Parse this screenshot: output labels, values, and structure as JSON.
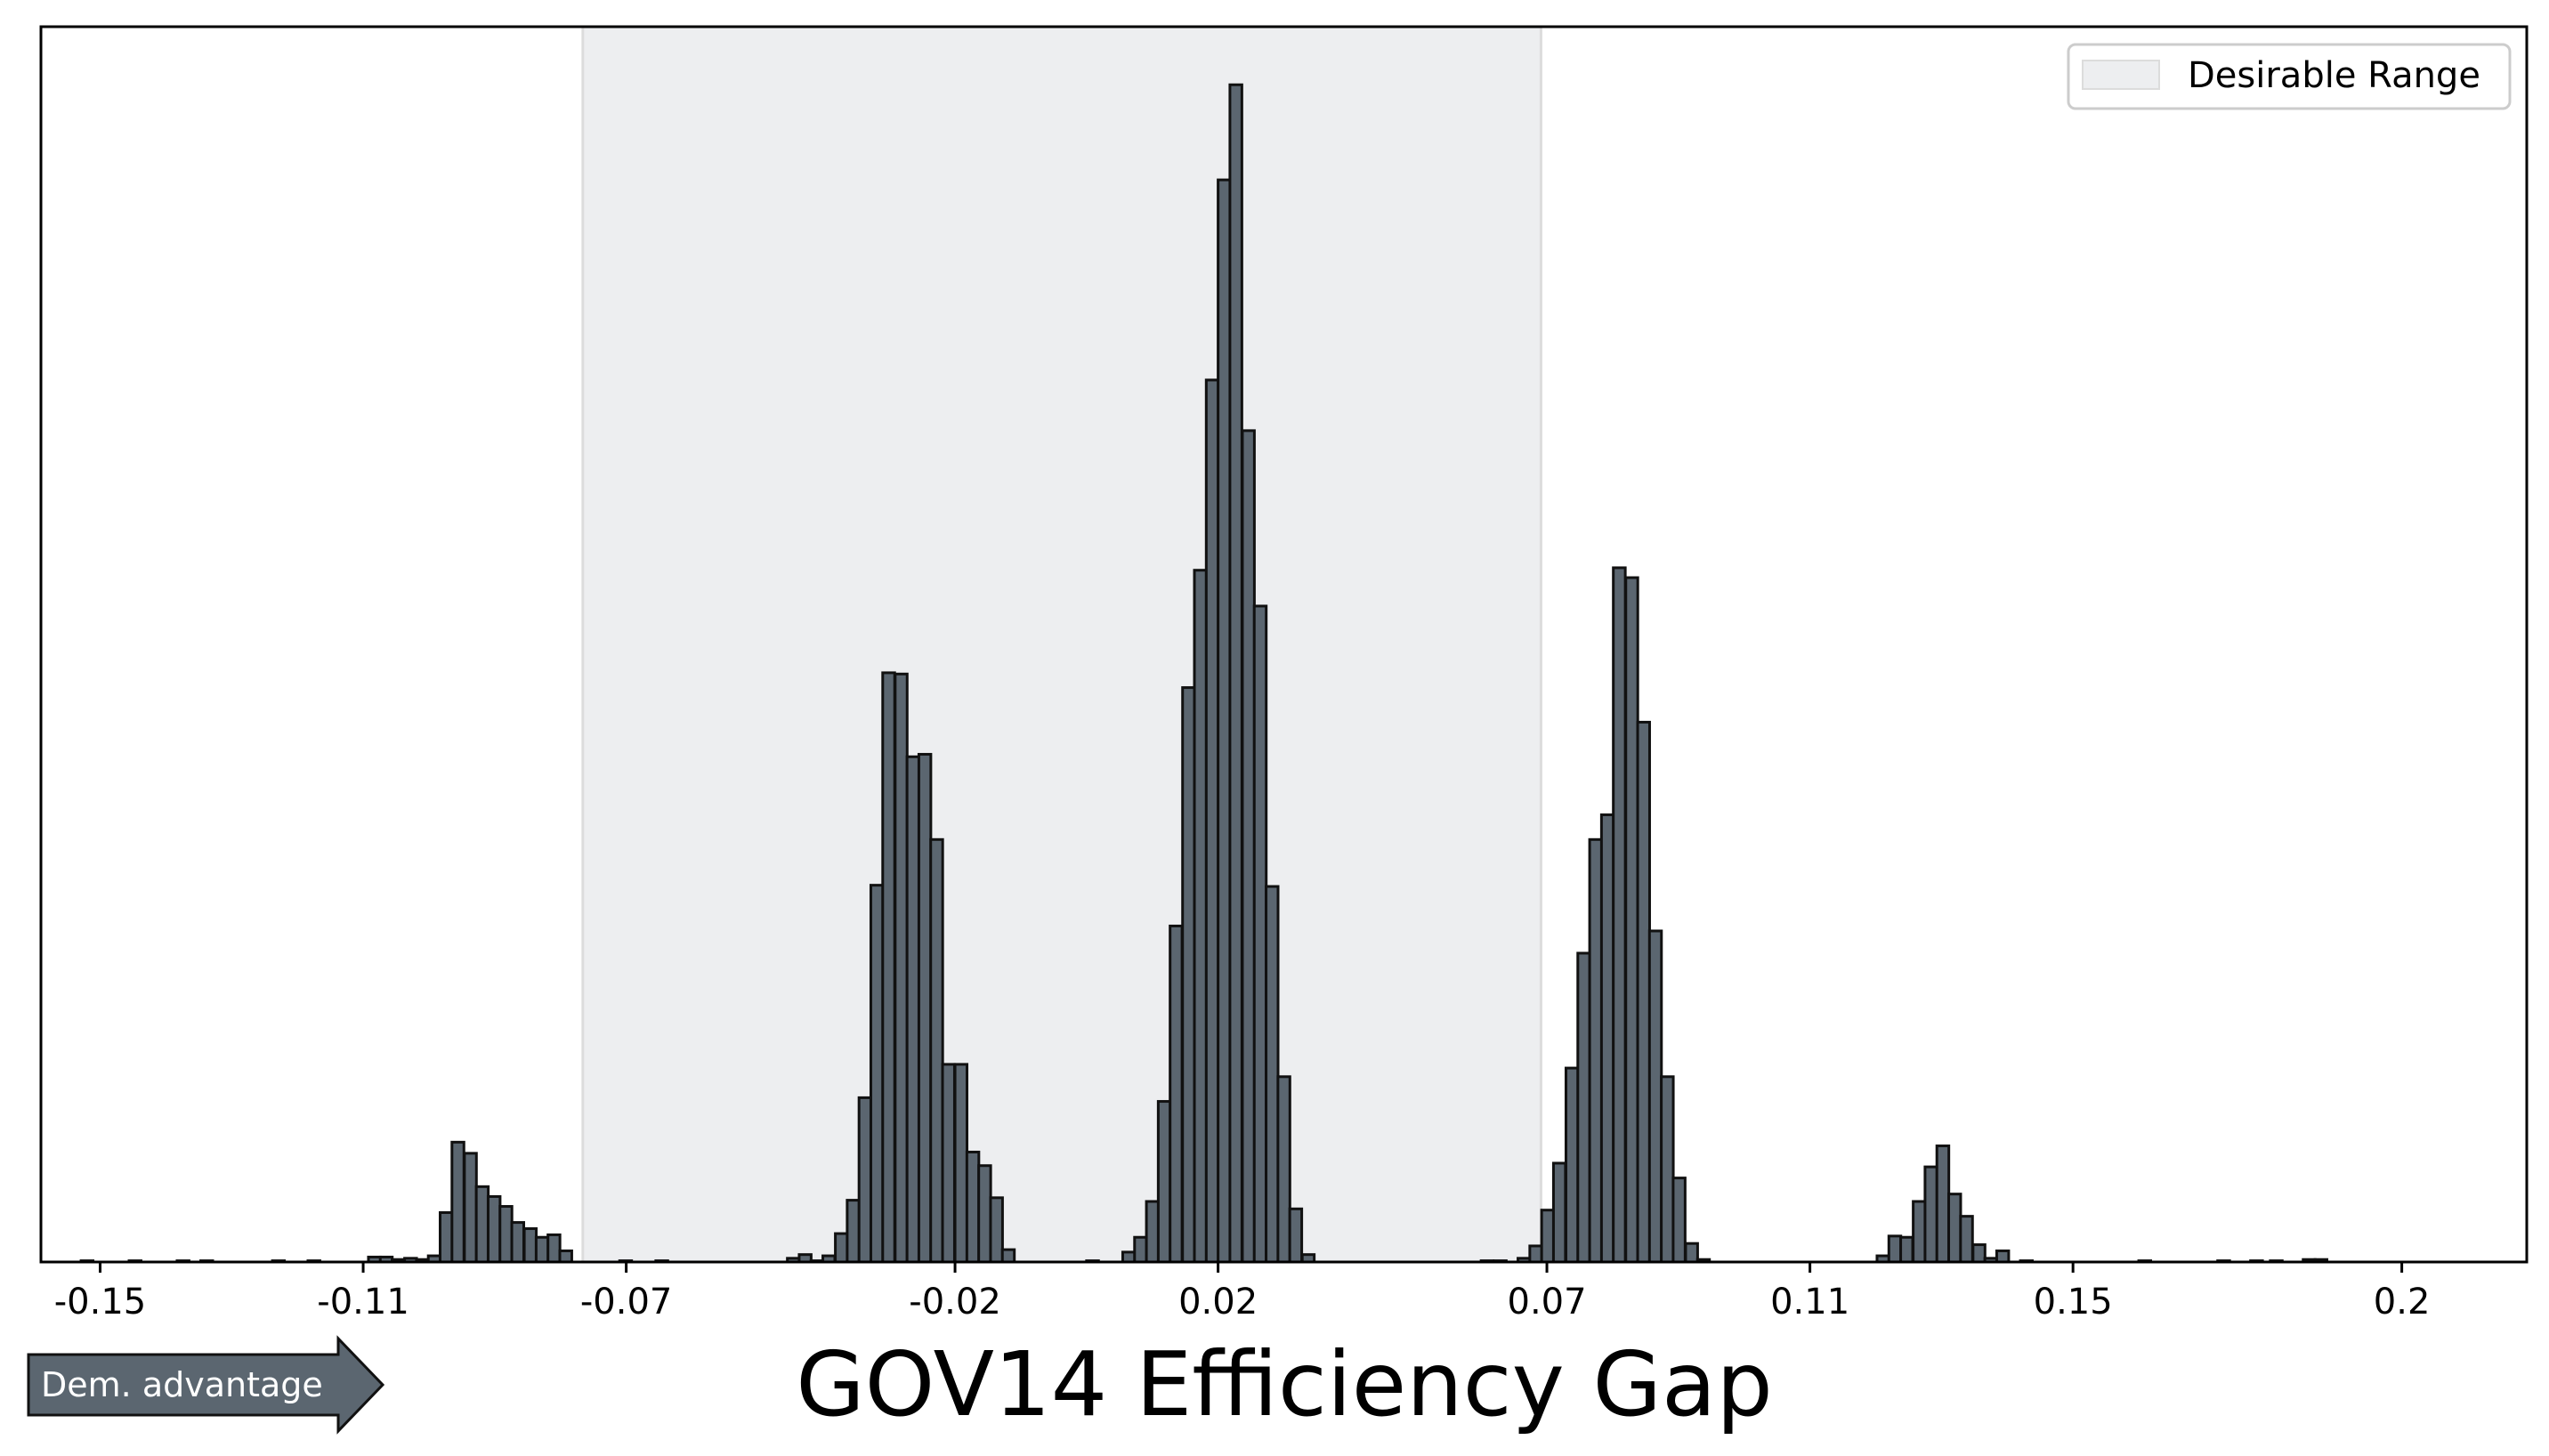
{
  "chart_data": {
    "type": "bar",
    "xlabel": "GOV14 Efficiency Gap",
    "ylabel": "",
    "xlim": [
      -0.159,
      0.219
    ],
    "ylim": [
      0,
      1.0
    ],
    "x_ticks": [
      "-0.15",
      "-0.11",
      "-0.07",
      "-0.02",
      "0.02",
      "0.07",
      "0.11",
      "0.15",
      "0.2"
    ],
    "x_tick_values": [
      -0.15,
      -0.11,
      -0.07,
      -0.02,
      0.02,
      0.07,
      0.11,
      0.15,
      0.2
    ],
    "y_ticks_shown": false,
    "legend": {
      "position": "top-right",
      "entries": [
        "Desirable Range"
      ]
    },
    "shaded_region": {
      "label": "Desirable Range",
      "x_from": -0.0766,
      "x_to": 0.0691,
      "color": "#edeef0"
    },
    "bar_color": "#5b6670",
    "bar_edge_color": "#111111",
    "bin_width": 0.00182,
    "series": [
      {
        "values": [
          [
            -0.1092,
            0.004
          ],
          [
            -0.1074,
            0.004
          ],
          [
            -0.1056,
            0.002
          ],
          [
            -0.1037,
            0.003
          ],
          [
            -0.1019,
            0.002
          ],
          [
            -0.1001,
            0.005
          ],
          [
            -0.0983,
            0.04
          ],
          [
            -0.0965,
            0.097
          ],
          [
            -0.0946,
            0.088
          ],
          [
            -0.0928,
            0.061
          ],
          [
            -0.091,
            0.053
          ],
          [
            -0.0892,
            0.045
          ],
          [
            -0.0874,
            0.032
          ],
          [
            -0.0855,
            0.027
          ],
          [
            -0.0837,
            0.02
          ],
          [
            -0.0819,
            0.022
          ],
          [
            -0.0801,
            0.009
          ],
          [
            -0.0455,
            0.003
          ],
          [
            -0.0437,
            0.006
          ],
          [
            -0.0419,
            0.001
          ],
          [
            -0.0401,
            0.005
          ],
          [
            -0.0382,
            0.023
          ],
          [
            -0.0364,
            0.05
          ],
          [
            -0.0346,
            0.133
          ],
          [
            -0.0328,
            0.305
          ],
          [
            -0.031,
            0.477
          ],
          [
            -0.0291,
            0.476
          ],
          [
            -0.0273,
            0.409
          ],
          [
            -0.0255,
            0.411
          ],
          [
            -0.0237,
            0.342
          ],
          [
            -0.0219,
            0.16
          ],
          [
            -0.02,
            0.16
          ],
          [
            -0.0182,
            0.089
          ],
          [
            -0.0164,
            0.078
          ],
          [
            -0.0146,
            0.052
          ],
          [
            -0.0128,
            0.01
          ],
          [
            0.0055,
            0.008
          ],
          [
            0.0073,
            0.02
          ],
          [
            0.0091,
            0.049
          ],
          [
            0.0109,
            0.13
          ],
          [
            0.0127,
            0.272
          ],
          [
            0.0146,
            0.465
          ],
          [
            0.0164,
            0.56
          ],
          [
            0.0182,
            0.714
          ],
          [
            0.02,
            0.876
          ],
          [
            0.0218,
            0.953
          ],
          [
            0.0237,
            0.673
          ],
          [
            0.0255,
            0.531
          ],
          [
            0.0273,
            0.304
          ],
          [
            0.0291,
            0.15
          ],
          [
            0.0309,
            0.043
          ],
          [
            0.0328,
            0.006
          ],
          [
            0.0656,
            0.003
          ],
          [
            0.0674,
            0.013
          ],
          [
            0.0692,
            0.042
          ],
          [
            0.071,
            0.08
          ],
          [
            0.0729,
            0.157
          ],
          [
            0.0747,
            0.25
          ],
          [
            0.0765,
            0.342
          ],
          [
            0.0783,
            0.362
          ],
          [
            0.0801,
            0.562
          ],
          [
            0.082,
            0.554
          ],
          [
            0.0838,
            0.437
          ],
          [
            0.0856,
            0.268
          ],
          [
            0.0874,
            0.15
          ],
          [
            0.0892,
            0.068
          ],
          [
            0.0911,
            0.015
          ],
          [
            0.0929,
            0.002
          ],
          [
            0.1202,
            0.005
          ],
          [
            0.122,
            0.021
          ],
          [
            0.1238,
            0.02
          ],
          [
            0.1257,
            0.049
          ],
          [
            0.1275,
            0.077
          ],
          [
            0.1293,
            0.094
          ],
          [
            0.1311,
            0.055
          ],
          [
            0.1329,
            0.037
          ],
          [
            0.1348,
            0.014
          ],
          [
            0.1366,
            0.003
          ],
          [
            0.1384,
            0.009
          ],
          [
            -0.1529,
            0.001
          ],
          [
            -0.1456,
            0.001
          ],
          [
            -0.1383,
            0.001
          ],
          [
            -0.1347,
            0.001
          ],
          [
            -0.1238,
            0.001
          ],
          [
            -0.1184,
            0.001
          ],
          [
            -0.071,
            0.001
          ],
          [
            -0.0655,
            0.001
          ],
          [
            0.0,
            0.001
          ],
          [
            0.06,
            0.001
          ],
          [
            0.062,
            0.001
          ],
          [
            0.142,
            0.001
          ],
          [
            0.16,
            0.001
          ],
          [
            0.172,
            0.001
          ],
          [
            0.177,
            0.001
          ],
          [
            0.18,
            0.001
          ],
          [
            0.185,
            0.002
          ],
          [
            0.1868,
            0.002
          ]
        ]
      }
    ]
  },
  "annotation": {
    "arrow_text": "Dem. advantage",
    "arrow_color": "#5b6670"
  }
}
